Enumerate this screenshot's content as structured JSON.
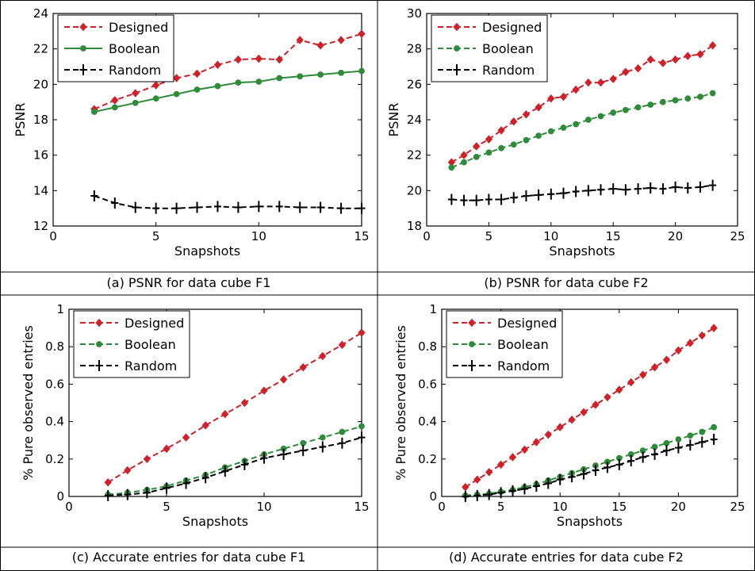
{
  "chart_data": [
    {
      "type": "line",
      "caption": "(a) PSNR for data cube F1",
      "xlabel": "Snapshots",
      "ylabel": "PSNR",
      "xlim": [
        0,
        15
      ],
      "ylim": [
        12,
        24
      ],
      "xticks": [
        0,
        5,
        10,
        15
      ],
      "yticks": [
        12,
        14,
        16,
        18,
        20,
        22,
        24
      ],
      "legend": "top-left",
      "series": [
        {
          "name": "Designed",
          "color": "#d0212a",
          "dash": "dashed",
          "marker": "diamond",
          "x": [
            2,
            3,
            4,
            5,
            6,
            7,
            8,
            9,
            10,
            11,
            12,
            13,
            14,
            15
          ],
          "y": [
            18.6,
            19.1,
            19.5,
            19.95,
            20.35,
            20.6,
            21.1,
            21.4,
            21.45,
            21.4,
            22.5,
            22.2,
            22.5,
            22.85
          ]
        },
        {
          "name": "Boolean",
          "color": "#2e8b3a",
          "dash": "solid",
          "marker": "circle",
          "x": [
            2,
            3,
            4,
            5,
            6,
            7,
            8,
            9,
            10,
            11,
            12,
            13,
            14,
            15
          ],
          "y": [
            18.45,
            18.7,
            18.95,
            19.2,
            19.45,
            19.7,
            19.9,
            20.1,
            20.15,
            20.35,
            20.45,
            20.55,
            20.65,
            20.75
          ]
        },
        {
          "name": "Random",
          "color": "#000000",
          "dash": "dashed",
          "marker": "plus",
          "x": [
            2,
            3,
            4,
            5,
            6,
            7,
            8,
            9,
            10,
            11,
            12,
            13,
            14,
            15
          ],
          "y": [
            13.7,
            13.3,
            13.05,
            13.0,
            13.0,
            13.05,
            13.1,
            13.05,
            13.1,
            13.1,
            13.05,
            13.05,
            13.0,
            13.0
          ]
        }
      ]
    },
    {
      "type": "line",
      "caption": "(b) PSNR for data cube F2",
      "xlabel": "Snapshots",
      "ylabel": "PSNR",
      "xlim": [
        0,
        25
      ],
      "ylim": [
        18,
        30
      ],
      "xticks": [
        0,
        5,
        10,
        15,
        20,
        25
      ],
      "yticks": [
        18,
        20,
        22,
        24,
        26,
        28,
        30
      ],
      "legend": "top-left",
      "series": [
        {
          "name": "Designed",
          "color": "#d0212a",
          "dash": "dashed",
          "marker": "diamond",
          "x": [
            2,
            3,
            4,
            5,
            6,
            7,
            8,
            9,
            10,
            11,
            12,
            13,
            14,
            15,
            16,
            17,
            18,
            19,
            20,
            21,
            22,
            23
          ],
          "y": [
            21.6,
            22.0,
            22.5,
            22.9,
            23.4,
            23.9,
            24.3,
            24.7,
            25.2,
            25.3,
            25.7,
            26.1,
            26.1,
            26.3,
            26.7,
            26.9,
            27.4,
            27.2,
            27.4,
            27.6,
            27.7,
            28.2
          ]
        },
        {
          "name": "Boolean",
          "color": "#2e8b3a",
          "dash": "dashed",
          "marker": "circle",
          "x": [
            2,
            3,
            4,
            5,
            6,
            7,
            8,
            9,
            10,
            11,
            12,
            13,
            14,
            15,
            16,
            17,
            18,
            19,
            20,
            21,
            22,
            23
          ],
          "y": [
            21.3,
            21.6,
            21.9,
            22.15,
            22.4,
            22.6,
            22.85,
            23.1,
            23.35,
            23.55,
            23.75,
            24.0,
            24.2,
            24.4,
            24.55,
            24.7,
            24.85,
            25.0,
            25.1,
            25.2,
            25.3,
            25.5
          ]
        },
        {
          "name": "Random",
          "color": "#000000",
          "dash": "dashed",
          "marker": "plus",
          "x": [
            2,
            3,
            4,
            5,
            6,
            7,
            8,
            9,
            10,
            11,
            12,
            13,
            14,
            15,
            16,
            17,
            18,
            19,
            20,
            21,
            22,
            23
          ],
          "y": [
            19.5,
            19.45,
            19.45,
            19.5,
            19.5,
            19.6,
            19.7,
            19.75,
            19.8,
            19.85,
            19.95,
            20.0,
            20.05,
            20.1,
            20.05,
            20.1,
            20.15,
            20.1,
            20.2,
            20.15,
            20.2,
            20.3
          ]
        }
      ]
    },
    {
      "type": "line",
      "caption": "(c) Accurate entries for data cube F1",
      "xlabel": "Snapshots",
      "ylabel": "% Pure observed entries",
      "xlim": [
        0,
        15
      ],
      "ylim": [
        0,
        1
      ],
      "xticks": [
        0,
        5,
        10,
        15
      ],
      "yticks": [
        0,
        0.2,
        0.4,
        0.6,
        0.8,
        1
      ],
      "legend": "top-left",
      "series": [
        {
          "name": "Designed",
          "color": "#d0212a",
          "dash": "dashed",
          "marker": "diamond",
          "x": [
            2,
            3,
            4,
            5,
            6,
            7,
            8,
            9,
            10,
            11,
            12,
            13,
            14,
            15
          ],
          "y": [
            0.075,
            0.14,
            0.2,
            0.255,
            0.315,
            0.38,
            0.44,
            0.5,
            0.565,
            0.625,
            0.69,
            0.75,
            0.81,
            0.875
          ]
        },
        {
          "name": "Boolean",
          "color": "#2e8b3a",
          "dash": "dashed",
          "marker": "circle",
          "x": [
            2,
            3,
            4,
            5,
            6,
            7,
            8,
            9,
            10,
            11,
            12,
            13,
            14,
            15
          ],
          "y": [
            0.01,
            0.02,
            0.035,
            0.055,
            0.085,
            0.115,
            0.155,
            0.19,
            0.225,
            0.255,
            0.285,
            0.315,
            0.345,
            0.375
          ]
        },
        {
          "name": "Random",
          "color": "#000000",
          "dash": "dashed",
          "marker": "plus",
          "x": [
            2,
            3,
            4,
            5,
            6,
            7,
            8,
            9,
            10,
            11,
            12,
            13,
            14,
            15
          ],
          "y": [
            0.005,
            0.01,
            0.02,
            0.045,
            0.07,
            0.1,
            0.135,
            0.17,
            0.205,
            0.225,
            0.245,
            0.265,
            0.285,
            0.315
          ]
        }
      ]
    },
    {
      "type": "line",
      "caption": "(d) Accurate entries for data cube F2",
      "xlabel": "Snapshots",
      "ylabel": "% Pure observed entries",
      "xlim": [
        0,
        25
      ],
      "ylim": [
        0,
        1
      ],
      "xticks": [
        0,
        5,
        10,
        15,
        20,
        25
      ],
      "yticks": [
        0,
        0.2,
        0.4,
        0.6,
        0.8,
        1
      ],
      "legend": "top-left",
      "series": [
        {
          "name": "Designed",
          "color": "#d0212a",
          "dash": "dashed",
          "marker": "diamond",
          "x": [
            2,
            3,
            4,
            5,
            6,
            7,
            8,
            9,
            10,
            11,
            12,
            13,
            14,
            15,
            16,
            17,
            18,
            19,
            20,
            21,
            22,
            23
          ],
          "y": [
            0.05,
            0.09,
            0.13,
            0.17,
            0.21,
            0.25,
            0.29,
            0.33,
            0.37,
            0.41,
            0.45,
            0.49,
            0.53,
            0.57,
            0.61,
            0.65,
            0.69,
            0.73,
            0.78,
            0.82,
            0.86,
            0.9
          ]
        },
        {
          "name": "Boolean",
          "color": "#2e8b3a",
          "dash": "dashed",
          "marker": "circle",
          "x": [
            2,
            3,
            4,
            5,
            6,
            7,
            8,
            9,
            10,
            11,
            12,
            13,
            14,
            15,
            16,
            17,
            18,
            19,
            20,
            21,
            22,
            23
          ],
          "y": [
            0.005,
            0.01,
            0.015,
            0.025,
            0.035,
            0.05,
            0.065,
            0.085,
            0.105,
            0.125,
            0.145,
            0.165,
            0.185,
            0.205,
            0.225,
            0.245,
            0.265,
            0.285,
            0.305,
            0.325,
            0.345,
            0.37
          ]
        },
        {
          "name": "Random",
          "color": "#000000",
          "dash": "dashed",
          "marker": "plus",
          "x": [
            2,
            3,
            4,
            5,
            6,
            7,
            8,
            9,
            10,
            11,
            12,
            13,
            14,
            15,
            16,
            17,
            18,
            19,
            20,
            21,
            22,
            23
          ],
          "y": [
            0.0,
            0.005,
            0.01,
            0.02,
            0.03,
            0.04,
            0.055,
            0.07,
            0.09,
            0.105,
            0.12,
            0.14,
            0.155,
            0.17,
            0.19,
            0.21,
            0.225,
            0.245,
            0.26,
            0.275,
            0.29,
            0.305
          ]
        }
      ]
    }
  ]
}
